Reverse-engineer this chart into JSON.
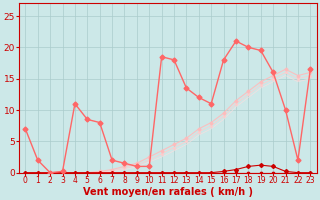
{
  "bg_color": "#cce8e8",
  "grid_color": "#aacccc",
  "xlabel": "Vent moyen/en rafales ( km/h )",
  "xlabel_color": "#cc0000",
  "xlabel_fontsize": 7,
  "xtick_fontsize": 5.5,
  "ytick_fontsize": 6.5,
  "xlim": [
    -0.5,
    23.5
  ],
  "ylim": [
    0,
    27
  ],
  "yticks": [
    0,
    5,
    10,
    15,
    20,
    25
  ],
  "xticks": [
    0,
    1,
    2,
    3,
    4,
    5,
    6,
    7,
    8,
    9,
    10,
    11,
    12,
    13,
    14,
    15,
    16,
    17,
    18,
    19,
    20,
    21,
    22,
    23
  ],
  "series": [
    {
      "note": "bottom flat line with small markers - dark red",
      "x": [
        0,
        1,
        2,
        3,
        4,
        5,
        6,
        7,
        8,
        9,
        10,
        11,
        12,
        13,
        14,
        15,
        16,
        17,
        18,
        19,
        20,
        21,
        22,
        23
      ],
      "y": [
        0,
        0,
        0,
        0,
        0,
        0,
        0,
        0,
        0,
        0,
        0,
        0,
        0,
        0,
        0,
        0,
        0,
        0,
        0,
        0,
        0,
        0,
        0,
        0
      ],
      "color": "#cc0000",
      "lw": 0.8,
      "marker": "s",
      "ms": 1.5,
      "alpha": 1.0,
      "zorder": 5
    },
    {
      "note": "second flat line slightly above 0 - dark red with square markers",
      "x": [
        0,
        1,
        2,
        3,
        4,
        5,
        6,
        7,
        8,
        9,
        10,
        11,
        12,
        13,
        14,
        15,
        16,
        17,
        18,
        19,
        20,
        21,
        22,
        23
      ],
      "y": [
        0,
        0,
        0,
        0,
        0,
        0,
        0,
        0,
        0,
        0,
        0,
        0,
        0,
        0,
        0,
        0,
        0,
        0,
        0,
        0,
        0,
        0,
        0,
        0
      ],
      "color": "#cc0000",
      "lw": 0.7,
      "marker": "^",
      "ms": 2.0,
      "alpha": 0.9,
      "zorder": 4
    },
    {
      "note": "slightly rising line near zero - dark red",
      "x": [
        0,
        1,
        2,
        3,
        4,
        5,
        6,
        7,
        8,
        9,
        10,
        11,
        12,
        13,
        14,
        15,
        16,
        17,
        18,
        19,
        20,
        21,
        22,
        23
      ],
      "y": [
        0,
        0,
        0,
        0,
        0,
        0,
        0,
        0,
        0,
        0,
        0,
        0,
        0,
        0,
        0,
        0,
        0.2,
        0.5,
        1.0,
        1.2,
        1.0,
        0.2,
        0,
        0
      ],
      "color": "#cc0000",
      "lw": 0.8,
      "marker": "D",
      "ms": 2.0,
      "alpha": 1.0,
      "zorder": 5
    },
    {
      "note": "main jagged line - bright salmon/pink, starts at 7, dips, spikes",
      "x": [
        0,
        1,
        2,
        3,
        4,
        5,
        6,
        7,
        8,
        9,
        10,
        11,
        12,
        13,
        14,
        15,
        16,
        17,
        18,
        19,
        20,
        21,
        22,
        23
      ],
      "y": [
        7,
        2,
        0,
        0.2,
        11,
        8.5,
        8,
        2,
        1.5,
        1,
        1,
        18.5,
        18,
        13.5,
        12,
        11,
        18,
        21,
        20,
        19.5,
        16,
        10,
        2,
        16.5
      ],
      "color": "#ff6666",
      "lw": 1.0,
      "marker": "D",
      "ms": 2.5,
      "alpha": 1.0,
      "zorder": 6
    },
    {
      "note": "diagonal trend line 1 - very light pink, nearly straight rising",
      "x": [
        0,
        1,
        2,
        3,
        4,
        5,
        6,
        7,
        8,
        9,
        10,
        11,
        12,
        13,
        14,
        15,
        16,
        17,
        18,
        19,
        20,
        21,
        22,
        23
      ],
      "y": [
        0,
        0,
        0,
        0,
        0,
        0,
        0.2,
        0.5,
        1.0,
        1.5,
        2.5,
        3.5,
        4.5,
        5.5,
        7.0,
        8.0,
        9.5,
        11.5,
        13.0,
        14.5,
        15.5,
        16.5,
        15.5,
        16.0
      ],
      "color": "#ffbbbb",
      "lw": 0.8,
      "marker": "D",
      "ms": 1.5,
      "alpha": 0.9,
      "zorder": 3
    },
    {
      "note": "diagonal trend line 2 - lighter pink, nearly straight rising",
      "x": [
        0,
        1,
        2,
        3,
        4,
        5,
        6,
        7,
        8,
        9,
        10,
        11,
        12,
        13,
        14,
        15,
        16,
        17,
        18,
        19,
        20,
        21,
        22,
        23
      ],
      "y": [
        0,
        0,
        0,
        0,
        0,
        0,
        0.1,
        0.3,
        0.7,
        1.2,
        2.0,
        3.0,
        4.0,
        5.0,
        6.5,
        7.5,
        9.0,
        11.0,
        12.5,
        14.0,
        15.0,
        16.0,
        15.0,
        15.5
      ],
      "color": "#ffcccc",
      "lw": 0.7,
      "marker": "D",
      "ms": 1.2,
      "alpha": 0.8,
      "zorder": 2
    },
    {
      "note": "diagonal trend line 3 - even lighter, nearly straight",
      "x": [
        0,
        1,
        2,
        3,
        4,
        5,
        6,
        7,
        8,
        9,
        10,
        11,
        12,
        13,
        14,
        15,
        16,
        17,
        18,
        19,
        20,
        21,
        22,
        23
      ],
      "y": [
        0,
        0,
        0,
        0,
        0,
        0,
        0,
        0.2,
        0.5,
        0.9,
        1.7,
        2.5,
        3.5,
        4.5,
        6.0,
        7.0,
        8.5,
        10.5,
        12.0,
        13.5,
        14.5,
        15.5,
        14.5,
        15.0
      ],
      "color": "#ffdddd",
      "lw": 0.6,
      "marker": null,
      "ms": 0,
      "alpha": 0.7,
      "zorder": 1
    }
  ]
}
